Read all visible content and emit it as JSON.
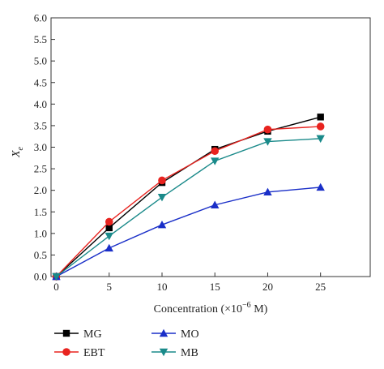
{
  "chart_data": {
    "type": "line",
    "xlabel": "Concentration (×10",
    "xlabel_exp": "−6",
    "xlabel_tail": " M)",
    "ylabel_main": "X",
    "ylabel_sub": "e",
    "xlim": [
      0,
      25
    ],
    "ylim": [
      0,
      6.0
    ],
    "xticks": [
      "0",
      "5",
      "10",
      "15",
      "20",
      "25"
    ],
    "yticks": [
      "0.0",
      "0.5",
      "1.0",
      "1.5",
      "2.0",
      "2.5",
      "3.0",
      "3.5",
      "4.0",
      "4.5",
      "5.0",
      "5.5",
      "6.0"
    ],
    "x": [
      0,
      5,
      10,
      15,
      20,
      25
    ],
    "legend_position": "bottom",
    "series": [
      {
        "name": "MG",
        "color": "#000000",
        "marker": "square",
        "values": [
          0.0,
          1.13,
          2.18,
          2.95,
          3.37,
          3.7
        ]
      },
      {
        "name": "EBT",
        "color": "#e8231f",
        "marker": "circle",
        "values": [
          0.0,
          1.27,
          2.23,
          2.91,
          3.41,
          3.48
        ]
      },
      {
        "name": "MO",
        "color": "#1a2fc8",
        "marker": "triangle-up",
        "values": [
          0.0,
          0.66,
          1.2,
          1.66,
          1.96,
          2.07
        ]
      },
      {
        "name": "MB",
        "color": "#1a8a8a",
        "marker": "triangle-down",
        "values": [
          0.0,
          0.94,
          1.84,
          2.68,
          3.13,
          3.2
        ]
      }
    ]
  }
}
